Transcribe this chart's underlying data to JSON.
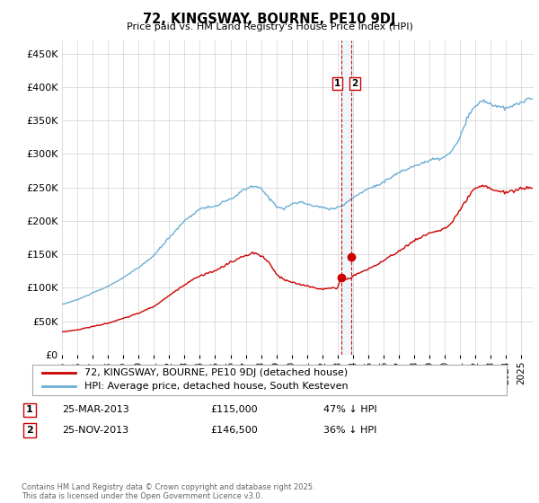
{
  "title": "72, KINGSWAY, BOURNE, PE10 9DJ",
  "subtitle": "Price paid vs. HM Land Registry's House Price Index (HPI)",
  "ylabel_ticks": [
    "£0",
    "£50K",
    "£100K",
    "£150K",
    "£200K",
    "£250K",
    "£300K",
    "£350K",
    "£400K",
    "£450K"
  ],
  "ytick_values": [
    0,
    50000,
    100000,
    150000,
    200000,
    250000,
    300000,
    350000,
    400000,
    450000
  ],
  "ylim": [
    0,
    470000
  ],
  "xlim_start": 1995.0,
  "xlim_end": 2025.8,
  "xtick_years": [
    1995,
    1996,
    1997,
    1998,
    1999,
    2000,
    2001,
    2002,
    2003,
    2004,
    2005,
    2006,
    2007,
    2008,
    2009,
    2010,
    2011,
    2012,
    2013,
    2014,
    2015,
    2016,
    2017,
    2018,
    2019,
    2020,
    2021,
    2022,
    2023,
    2024,
    2025
  ],
  "sale1_x": 2013.22,
  "sale1_y": 115000,
  "sale2_x": 2013.9,
  "sale2_y": 146500,
  "legend_entry1": "72, KINGSWAY, BOURNE, PE10 9DJ (detached house)",
  "legend_entry2": "HPI: Average price, detached house, South Kesteven",
  "footer": "Contains HM Land Registry data © Crown copyright and database right 2025.\nThis data is licensed under the Open Government Licence v3.0.",
  "hpi_color": "#6baed6",
  "price_color": "#cc0000",
  "vline_color": "#cc0000",
  "grid_color": "#d0d0d0",
  "background_color": "#ffffff"
}
